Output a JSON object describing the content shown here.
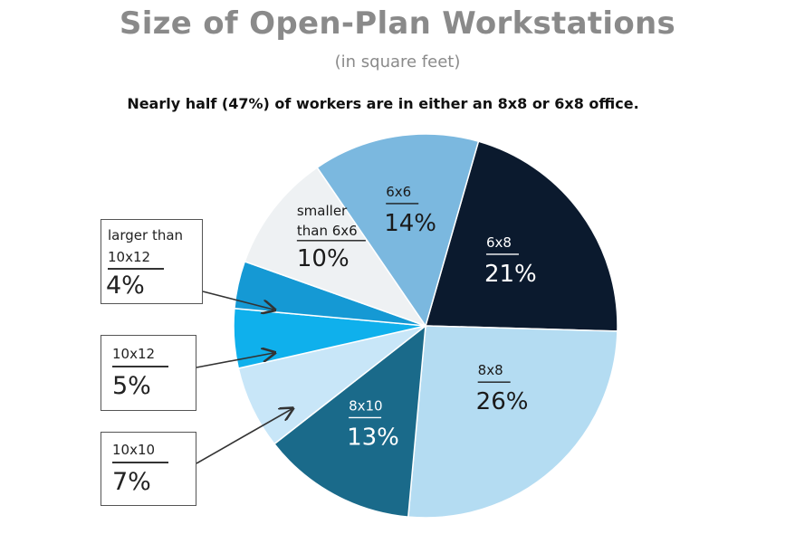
{
  "header": {
    "title": "Size of Open-Plan Workstations",
    "subtitle": "(in square feet)",
    "caption": "Nearly half (47%) of workers are in either an 8x8 or 6x8 office."
  },
  "chart_data": {
    "type": "pie",
    "title": "Size of Open-Plan Workstations",
    "subtitle": "(in square feet)",
    "slices": [
      {
        "label": "6x8",
        "value": 21,
        "display": "21%",
        "color": "#0b1a2e",
        "text_color": "#ffffff"
      },
      {
        "label": "8x8",
        "value": 26,
        "display": "26%",
        "color": "#b4dcf2",
        "text_color": "#1a1a1a"
      },
      {
        "label": "8x10",
        "value": 13,
        "display": "13%",
        "color": "#1a6a8a",
        "text_color": "#ffffff"
      },
      {
        "label": "10x10",
        "value": 7,
        "display": "7%",
        "color": "#c8e6f8",
        "text_color": "#1a1a1a"
      },
      {
        "label": "10x12",
        "value": 5,
        "display": "5%",
        "color": "#0fb0ec",
        "text_color": "#1a1a1a"
      },
      {
        "label": "larger than 10x12",
        "value": 4,
        "display": "4%",
        "color": "#1599d4",
        "text_color": "#1a1a1a"
      },
      {
        "label": "smaller than 6x6",
        "value": 10,
        "display": "10%",
        "color": "#eef1f3",
        "text_color": "#1a1a1a"
      },
      {
        "label": "6x6",
        "value": 14,
        "display": "14%",
        "color": "#7bb8df",
        "text_color": "#1a1a1a"
      }
    ]
  },
  "callouts": {
    "larger": {
      "line1": "larger than",
      "line2": "10x12",
      "value": "4%"
    },
    "tenbytwelve": {
      "name": "10x12",
      "value": "5%"
    },
    "tenbyten": {
      "name": "10x10",
      "value": "7%"
    }
  },
  "inline_labels": {
    "smaller_line1": "smaller",
    "smaller_line2": "than 6x6"
  }
}
